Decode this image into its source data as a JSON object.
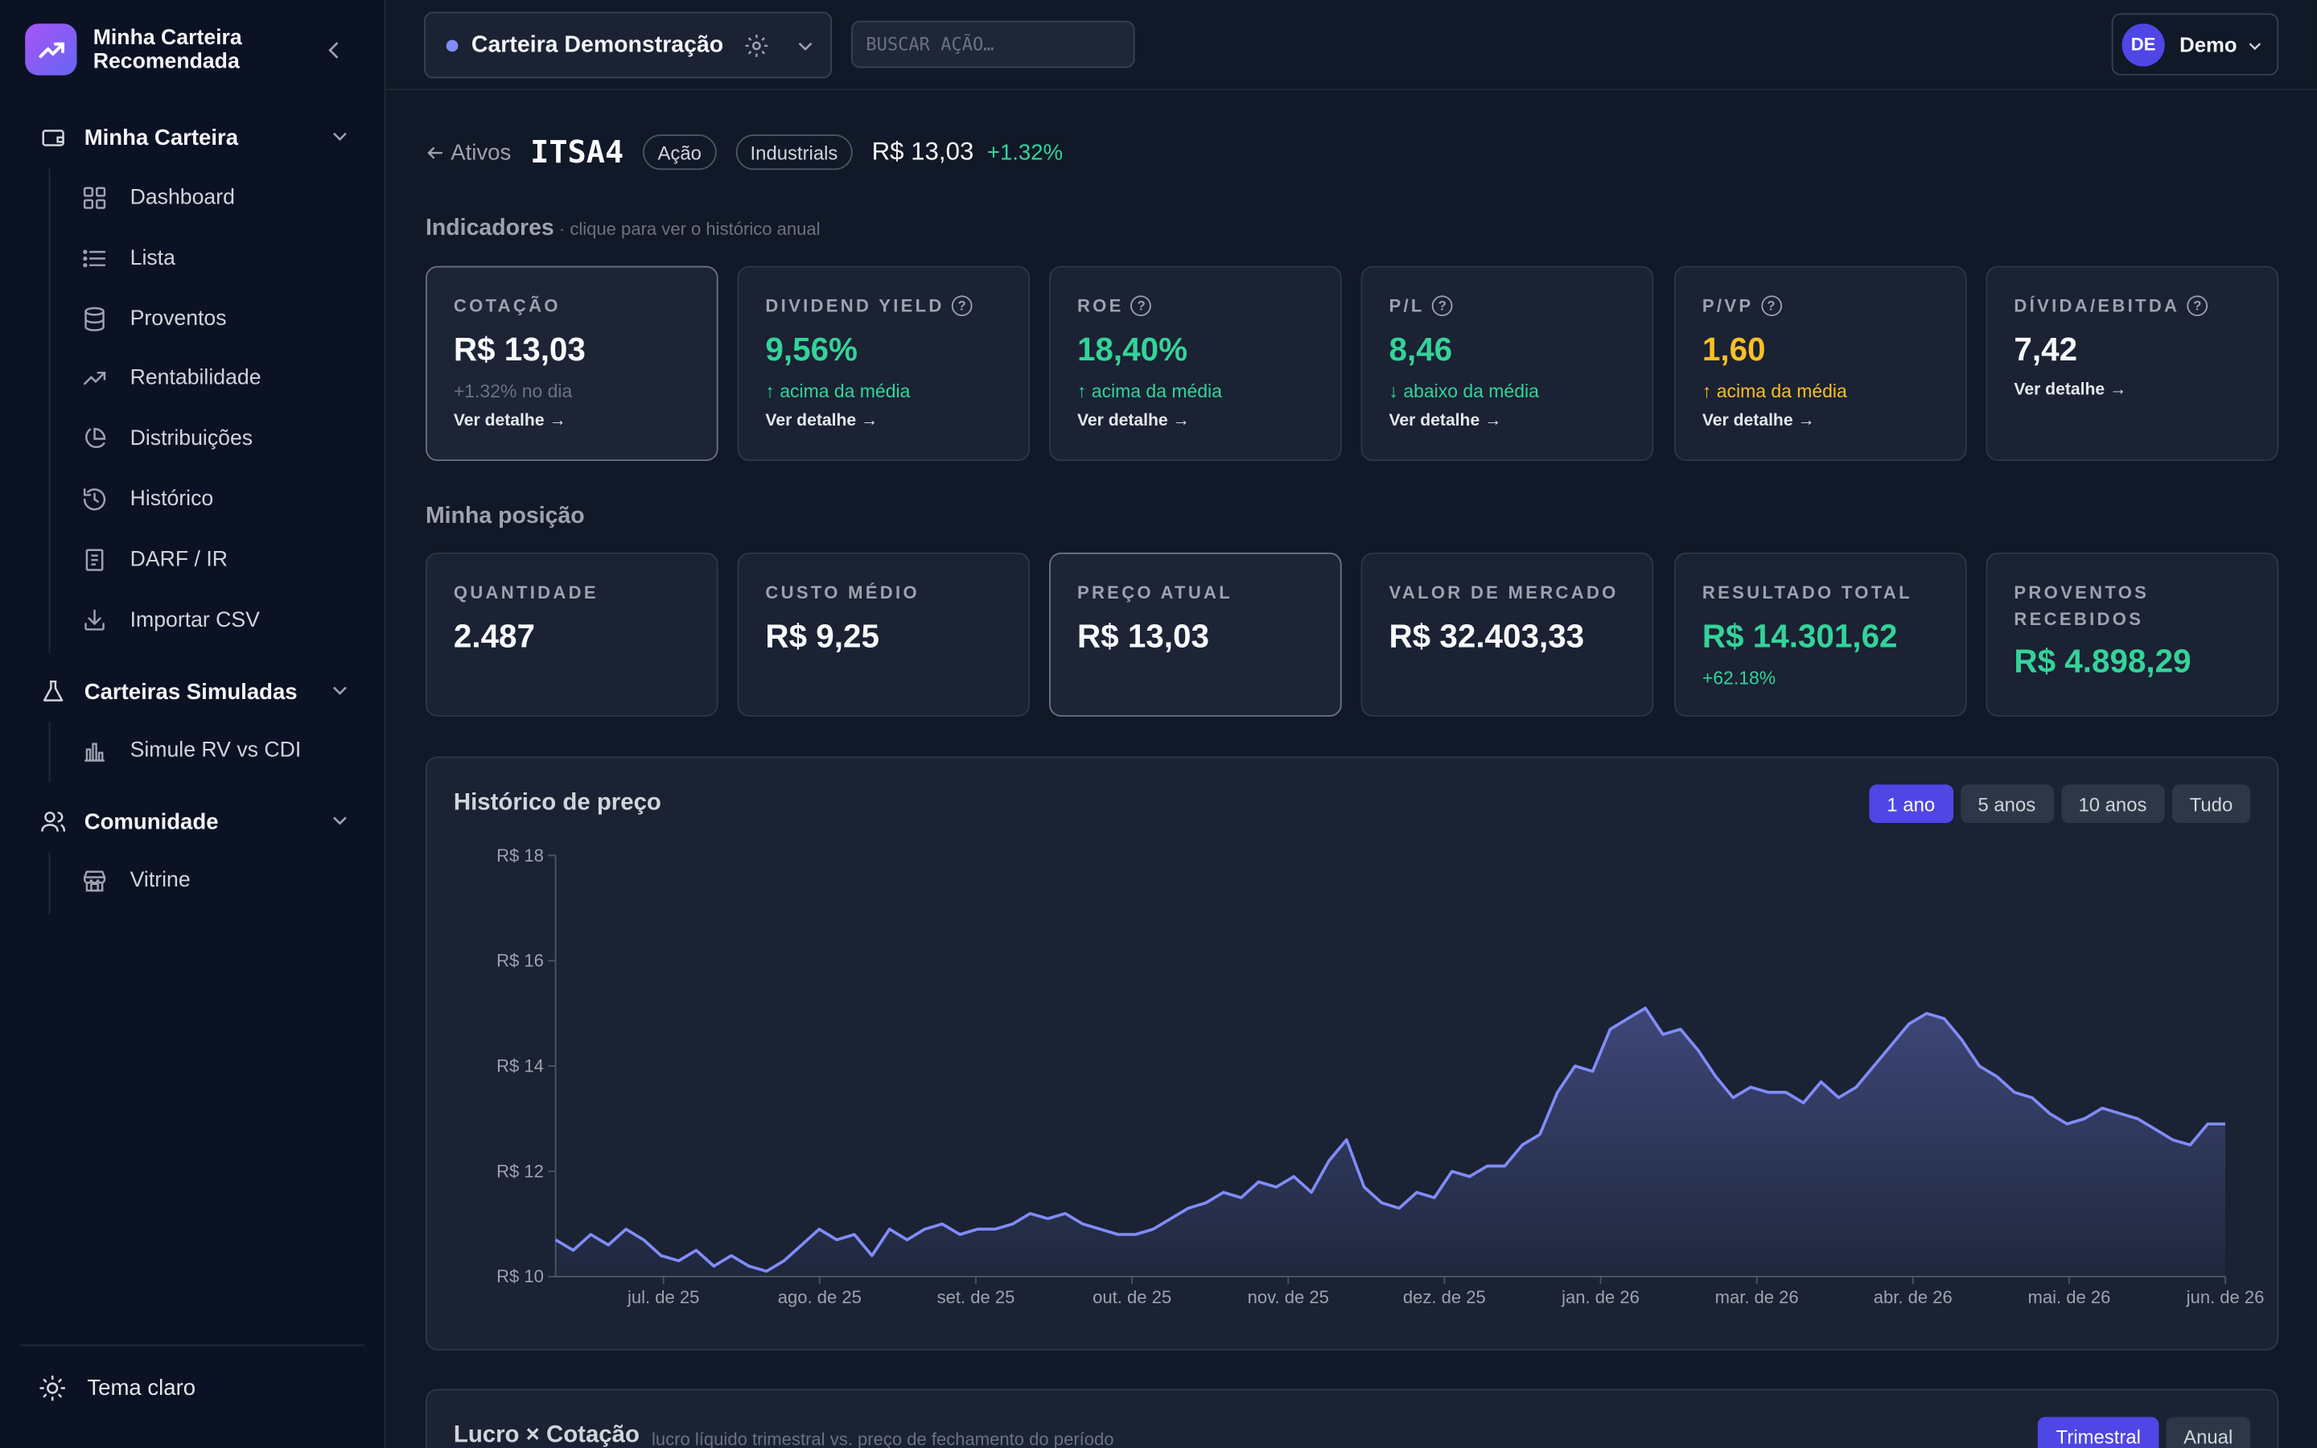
{
  "brand": {
    "title": "Minha Carteira Recomendada"
  },
  "sidebar": {
    "sections": [
      {
        "label": "Minha Carteira",
        "icon": "wallet-icon",
        "items": [
          {
            "label": "Dashboard",
            "icon": "grid-icon"
          },
          {
            "label": "Lista",
            "icon": "list-icon"
          },
          {
            "label": "Proventos",
            "icon": "database-icon"
          },
          {
            "label": "Rentabilidade",
            "icon": "trending-up-icon"
          },
          {
            "label": "Distribuições",
            "icon": "pie-chart-icon"
          },
          {
            "label": "Histórico",
            "icon": "history-icon"
          },
          {
            "label": "DARF / IR",
            "icon": "document-icon"
          },
          {
            "label": "Importar CSV",
            "icon": "download-icon"
          }
        ]
      },
      {
        "label": "Carteiras Simuladas",
        "icon": "flask-icon",
        "items": [
          {
            "label": "Simule RV vs CDI",
            "icon": "bar-chart-icon"
          }
        ]
      },
      {
        "label": "Comunidade",
        "icon": "users-icon",
        "items": [
          {
            "label": "Vitrine",
            "icon": "store-icon"
          }
        ]
      }
    ],
    "footer": {
      "theme_label": "Tema claro",
      "icon": "sun-icon"
    }
  },
  "topbar": {
    "portfolio": "Carteira Demonstração",
    "search_placeholder": "BUSCAR AÇÃO…",
    "user_initials": "DE",
    "user_name": "Demo"
  },
  "asset": {
    "back_label": "Ativos",
    "ticker": "ITSA4",
    "type": "Ação",
    "sector": "Industrials",
    "price": "R$ 13,03",
    "change": "+1.32%"
  },
  "indicators": {
    "title": "Indicadores",
    "subtitle": " · clique para ver o histórico anual",
    "cards": [
      {
        "label": "COTAÇÃO",
        "value": "R$ 13,03",
        "note": "+1.32% no dia",
        "link": "Ver detalhe →",
        "help": false,
        "tone": "neutral",
        "selected": true
      },
      {
        "label": "DIVIDEND YIELD",
        "value": "9,56%",
        "note": "↑ acima da média",
        "link": "Ver detalhe →",
        "help": true,
        "tone": "green"
      },
      {
        "label": "ROE",
        "value": "18,40%",
        "note": "↑ acima da média",
        "link": "Ver detalhe →",
        "help": true,
        "tone": "green"
      },
      {
        "label": "P/L",
        "value": "8,46",
        "note": "↓ abaixo da média",
        "link": "Ver detalhe →",
        "help": true,
        "tone": "green"
      },
      {
        "label": "P/VP",
        "value": "1,60",
        "note": "↑ acima da média",
        "link": "Ver detalhe →",
        "help": true,
        "tone": "amber"
      },
      {
        "label": "DÍVIDA/EBITDA",
        "value": "7,42",
        "note": "",
        "link": "Ver detalhe →",
        "help": true,
        "tone": "neutral"
      }
    ]
  },
  "position": {
    "title": "Minha posição",
    "cards": [
      {
        "label": "QUANTIDADE",
        "value": "2.487",
        "note": "",
        "tone": "neutral"
      },
      {
        "label": "CUSTO MÉDIO",
        "value": "R$ 9,25",
        "note": "",
        "tone": "neutral"
      },
      {
        "label": "PREÇO ATUAL",
        "value": "R$ 13,03",
        "note": "",
        "tone": "neutral",
        "selected": true
      },
      {
        "label": "VALOR DE MERCADO",
        "value": "R$ 32.403,33",
        "note": "",
        "tone": "neutral"
      },
      {
        "label": "RESULTADO TOTAL",
        "value": "R$ 14.301,62",
        "note": "+62.18%",
        "tone": "green"
      },
      {
        "label": "PROVENTOS RECEBIDOS",
        "value": "R$ 4.898,29",
        "note": "",
        "tone": "green"
      }
    ]
  },
  "price_chart": {
    "title": "Histórico de preço",
    "ranges": [
      "1 ano",
      "5 anos",
      "10 anos",
      "Tudo"
    ],
    "active_range": "1 ano"
  },
  "profit_chart": {
    "title": "Lucro × Cotação",
    "subtitle": "lucro líquido trimestral vs. preço de fechamento do período",
    "ranges": [
      "Trimestral",
      "Anual"
    ],
    "active_range": "Trimestral"
  },
  "colors": {
    "accent": "#4f46e5",
    "line": "#818cf8",
    "positive": "#34d399",
    "warning": "#fbbf24"
  },
  "chart_data": {
    "type": "area",
    "title": "Histórico de preço",
    "xlabel": "",
    "ylabel": "",
    "ylim": [
      10,
      18
    ],
    "yticks": [
      "R$ 10",
      "R$ 12",
      "R$ 14",
      "R$ 16",
      "R$ 18"
    ],
    "ytick_values": [
      10,
      12,
      14,
      16,
      18
    ],
    "xticks": [
      "jul. de 25",
      "ago. de 25",
      "set. de 25",
      "out. de 25",
      "nov. de 25",
      "dez. de 25",
      "jan. de 26",
      "mar. de 26",
      "abr. de 26",
      "mai. de 26",
      "jun. de 26"
    ],
    "grid": false,
    "series": [
      {
        "values": [
          10.7,
          10.5,
          10.8,
          10.6,
          10.9,
          10.7,
          10.4,
          10.3,
          10.5,
          10.2,
          10.4,
          10.2,
          10.1,
          10.3,
          10.6,
          10.9,
          10.7,
          10.8,
          10.4,
          10.9,
          10.7,
          10.9,
          11.0,
          10.8,
          10.9,
          10.9,
          11.0,
          11.2,
          11.1,
          11.2,
          11.0,
          10.9,
          10.8,
          10.8,
          10.9,
          11.1,
          11.3,
          11.4,
          11.6,
          11.5,
          11.8,
          11.7,
          11.9,
          11.6,
          12.2,
          12.6,
          11.7,
          11.4,
          11.3,
          11.6,
          11.5,
          12.0,
          11.9,
          12.1,
          12.1,
          12.5,
          12.7,
          13.5,
          14.0,
          13.9,
          14.7,
          14.9,
          15.1,
          14.6,
          14.7,
          14.3,
          13.8,
          13.4,
          13.6,
          13.5,
          13.5,
          13.3,
          13.7,
          13.4,
          13.6,
          14.0,
          14.4,
          14.8,
          15.0,
          14.9,
          14.5,
          14.0,
          13.8,
          13.5,
          13.4,
          13.1,
          12.9,
          13.0,
          13.2,
          13.1,
          13.0,
          12.8,
          12.6,
          12.5,
          12.9,
          12.9
        ]
      }
    ]
  }
}
